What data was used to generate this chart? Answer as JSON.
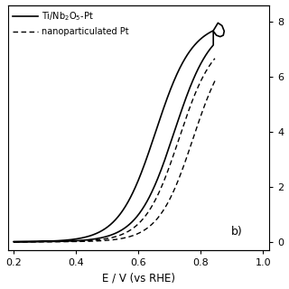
{
  "title": "",
  "xlabel": "E / V (vs RHE)",
  "ylabel": "",
  "xlim": [
    0.18,
    1.02
  ],
  "ylim": [
    -0.3,
    8.5
  ],
  "label_b": "b)",
  "legend_solid": "Ti/Nb$_2$O$_5$-Pt",
  "legend_dashed": "nanoparticulated Pt",
  "xticks": [
    0.2,
    0.4,
    0.6,
    0.8,
    1.0
  ],
  "xtick_labels": [
    "0.2",
    "0.4",
    "0.6",
    "0.8",
    "1.0"
  ],
  "yticks_right": [
    0,
    2,
    4,
    6,
    8
  ],
  "ytick_labels_right": [
    "0",
    "2",
    "4",
    "6",
    "8"
  ],
  "background_color": "#ffffff",
  "line_color": "#000000"
}
